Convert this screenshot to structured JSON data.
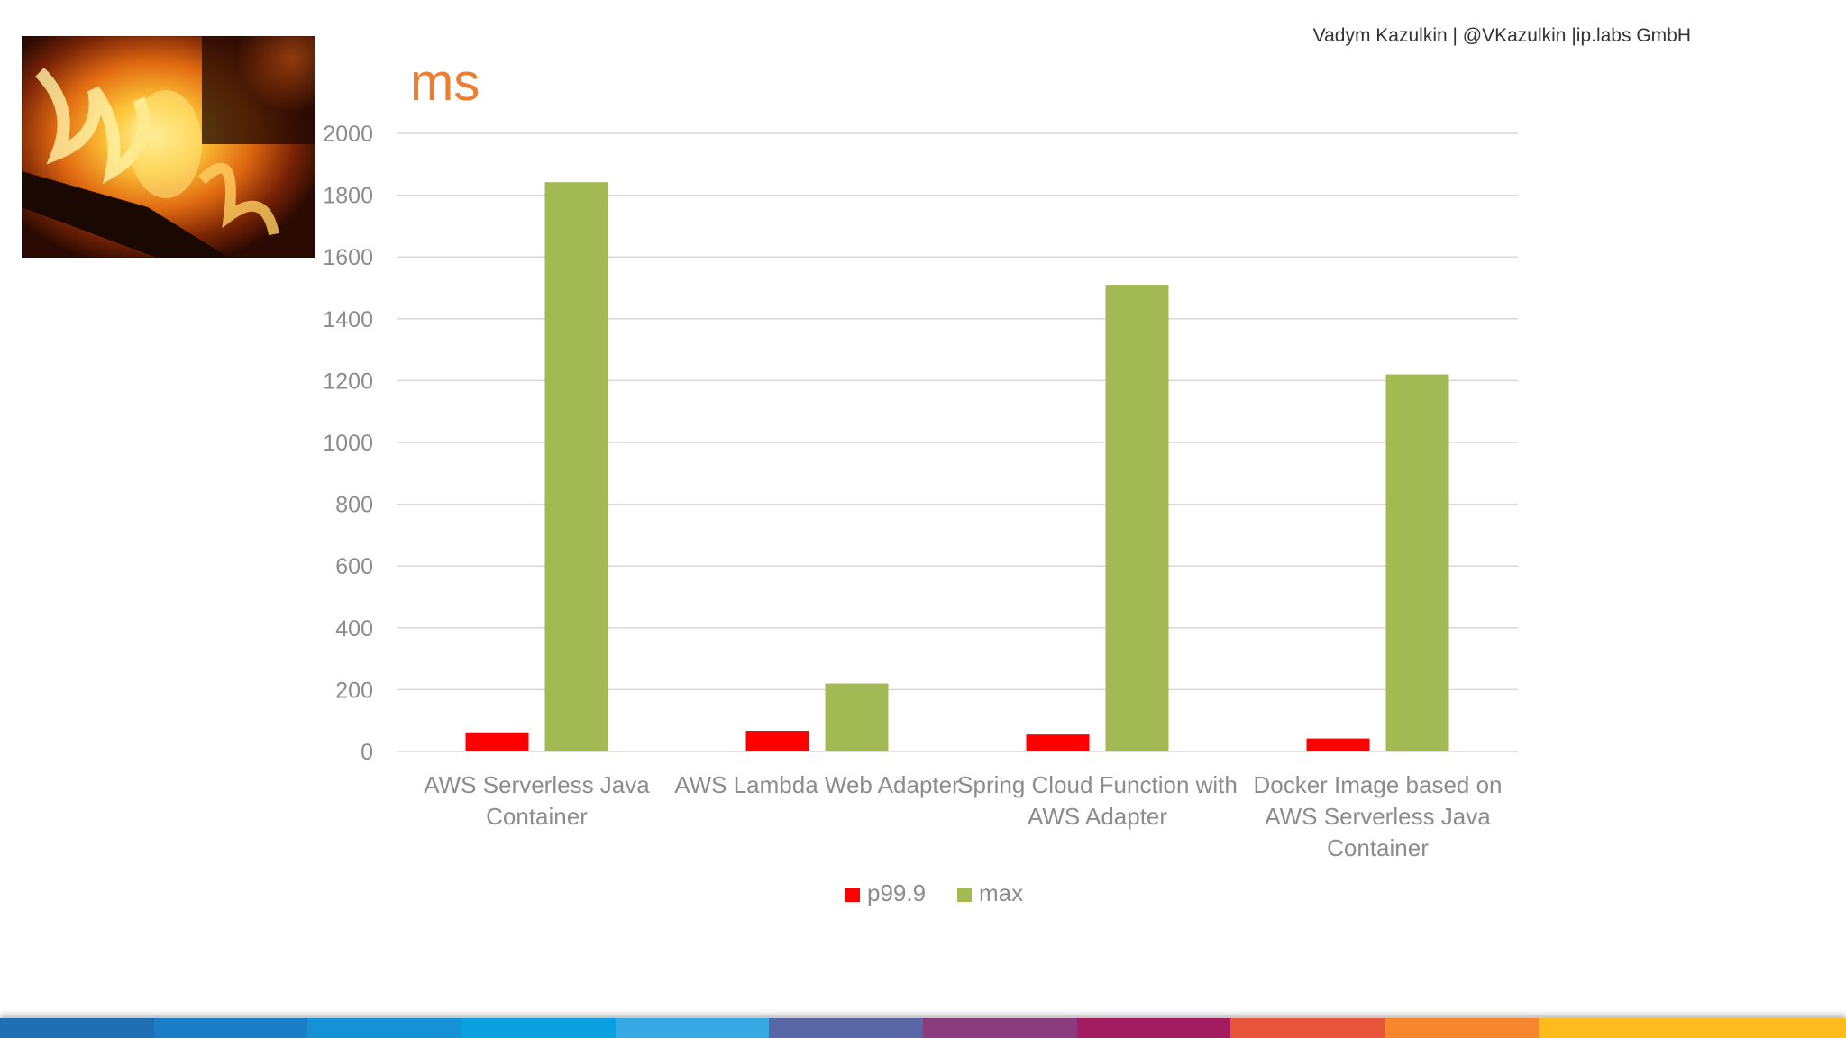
{
  "author": "Vadym Kazulkin | @VKazulkin |ip.labs GmbH",
  "unit_label": "ms",
  "chart_data": {
    "type": "bar",
    "categories": [
      [
        "AWS Serverless Java",
        "Container"
      ],
      [
        "AWS Lambda Web Adapter"
      ],
      [
        "Spring Cloud Function with",
        "AWS Adapter"
      ],
      [
        "Docker Image based on",
        "AWS Serverless Java",
        "Container"
      ]
    ],
    "series": [
      {
        "name": "p99.9",
        "color": "#FF0000",
        "values": [
          62,
          67,
          55,
          42
        ]
      },
      {
        "name": "max",
        "color": "#A3BA54",
        "values": [
          1842,
          220,
          1510,
          1220
        ]
      }
    ],
    "ylim": [
      0,
      2000
    ],
    "yticks": [
      0,
      200,
      400,
      600,
      800,
      1000,
      1200,
      1400,
      1600,
      1800,
      2000
    ],
    "grid": true,
    "legend": "bottom"
  },
  "footer_colors": [
    "#1F6FB5",
    "#1B7DC6",
    "#1591D6",
    "#0AA0E0",
    "#37AAE6",
    "#5967A6",
    "#8A3C7E",
    "#A41C60",
    "#E8553A",
    "#F7862E",
    "#FDBB1E",
    "#FDBB1E"
  ]
}
